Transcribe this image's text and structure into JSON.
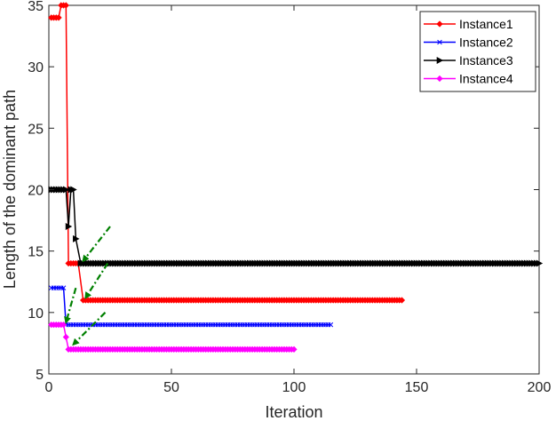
{
  "chart_data": {
    "type": "line",
    "xlabel": "Iteration",
    "ylabel": "Length of the dominant path",
    "xlim": [
      0,
      200
    ],
    "ylim": [
      5,
      35
    ],
    "xticks": [
      0,
      50,
      100,
      150,
      200
    ],
    "yticks": [
      5,
      10,
      15,
      20,
      25,
      30,
      35
    ],
    "grid": false,
    "legend_position": "top-right",
    "series": [
      {
        "name": "Instance1",
        "color": "#ff0000",
        "marker": "diamond",
        "points": [
          [
            1,
            34
          ],
          [
            4,
            34
          ],
          [
            5,
            35
          ],
          [
            7,
            35
          ],
          [
            8,
            14
          ],
          [
            12,
            14
          ],
          [
            14,
            11
          ],
          [
            144,
            11
          ]
        ]
      },
      {
        "name": "Instance2",
        "color": "#0000ff",
        "marker": "x",
        "points": [
          [
            1,
            12
          ],
          [
            6,
            12
          ],
          [
            7,
            9
          ],
          [
            115,
            9
          ]
        ]
      },
      {
        "name": "Instance3",
        "color": "#000000",
        "marker": "triangle-right",
        "points": [
          [
            1,
            20
          ],
          [
            7,
            20
          ],
          [
            8,
            17
          ],
          [
            9,
            20
          ],
          [
            10,
            20
          ],
          [
            11,
            16
          ],
          [
            13,
            14
          ],
          [
            200,
            14
          ]
        ]
      },
      {
        "name": "Instance4",
        "color": "#ff00ff",
        "marker": "diamond",
        "points": [
          [
            1,
            9
          ],
          [
            6,
            9
          ],
          [
            7,
            8
          ],
          [
            8,
            7
          ],
          [
            100,
            7
          ]
        ]
      }
    ],
    "annotations": [
      {
        "type": "arrow",
        "color": "#008000",
        "from": [
          25,
          17
        ],
        "to": [
          14,
          14.2
        ]
      },
      {
        "type": "arrow",
        "color": "#008000",
        "from": [
          24,
          14
        ],
        "to": [
          15,
          11.2
        ]
      },
      {
        "type": "arrow",
        "color": "#008000",
        "from": [
          11,
          12
        ],
        "to": [
          7,
          9.2
        ]
      },
      {
        "type": "arrow",
        "color": "#008000",
        "from": [
          23,
          10
        ],
        "to": [
          10,
          7.4
        ]
      }
    ]
  }
}
